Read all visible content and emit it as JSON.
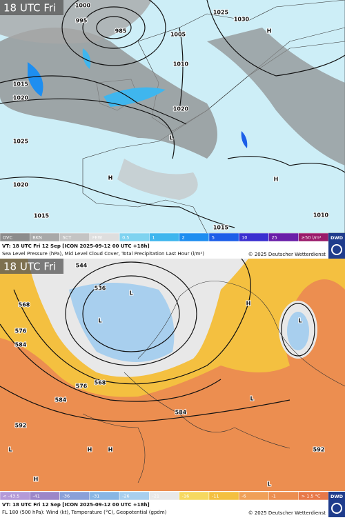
{
  "panels": [
    {
      "time_label": "18 UTC Fri",
      "legend": [
        {
          "label": "OVC",
          "color": "#8c8c8c"
        },
        {
          "label": "BKN",
          "color": "#a8a8a8"
        },
        {
          "label": "SCT",
          "color": "#c4c4c4"
        },
        {
          "label": "FEW",
          "color": "#dedede"
        },
        {
          "label": "0.5",
          "color": "#7fd3f0"
        },
        {
          "label": "1",
          "color": "#3fb6ee"
        },
        {
          "label": "2",
          "color": "#1e8ef0"
        },
        {
          "label": "5",
          "color": "#1c5ee8"
        },
        {
          "label": "10",
          "color": "#3a2fd0"
        },
        {
          "label": "25",
          "color": "#6a1ea8"
        },
        {
          "label": "≥50 l/m²",
          "color": "#9a1a6a"
        }
      ],
      "valid_line": "VT: 18 UTC Fri   12 Sep [ICON 2025-09-12 00 UTC +18h]",
      "description": "Sea Level Pressure (hPa), Mid Level Cloud Cover, Total Precipitation Last Hour (l/m²)",
      "copyright": "© 2025 Deutscher Wetterdienst",
      "logo": "DWD",
      "map_labels": [
        "1000",
        "995",
        "985",
        "1025",
        "1030",
        "1005",
        "1010",
        "1015",
        "1020",
        "1020",
        "1025",
        "1020",
        "1015",
        "1015",
        "1010",
        "H",
        "L",
        "H",
        "H"
      ]
    },
    {
      "time_label": "18 UTC Fri",
      "legend": [
        {
          "label": "< -43.5",
          "color": "#b49ad8"
        },
        {
          "label": "-41",
          "color": "#9c86c8"
        },
        {
          "label": "-36",
          "color": "#8aa0d8"
        },
        {
          "label": "-31",
          "color": "#88b6e4"
        },
        {
          "label": "-26",
          "color": "#a8cfee"
        },
        {
          "label": "-21",
          "color": "#e8e8e8"
        },
        {
          "label": "-16",
          "color": "#f6d860"
        },
        {
          "label": "-11",
          "color": "#f4c040"
        },
        {
          "label": "-6",
          "color": "#f0a058"
        },
        {
          "label": "-1",
          "color": "#ec8e50"
        },
        {
          "label": "> 1.5 °C",
          "color": "#e87848"
        }
      ],
      "valid_line": "VT: 18 UTC Fri   12 Sep [ICON 2025-09-12 00 UTC +18h]",
      "description": "FL 180 (500 hPa): Wind (kt), Temperature (°C), Geopotential (gpdm)",
      "copyright": "© 2025 Deutscher Wetterdienst",
      "logo": "DWD",
      "map_labels": [
        "544",
        "536",
        "568",
        "576",
        "584",
        "568",
        "576",
        "584",
        "592",
        "584",
        "592",
        "L",
        "L",
        "L",
        "H",
        "H",
        "H",
        "L",
        "H",
        "L",
        "L"
      ]
    }
  ]
}
